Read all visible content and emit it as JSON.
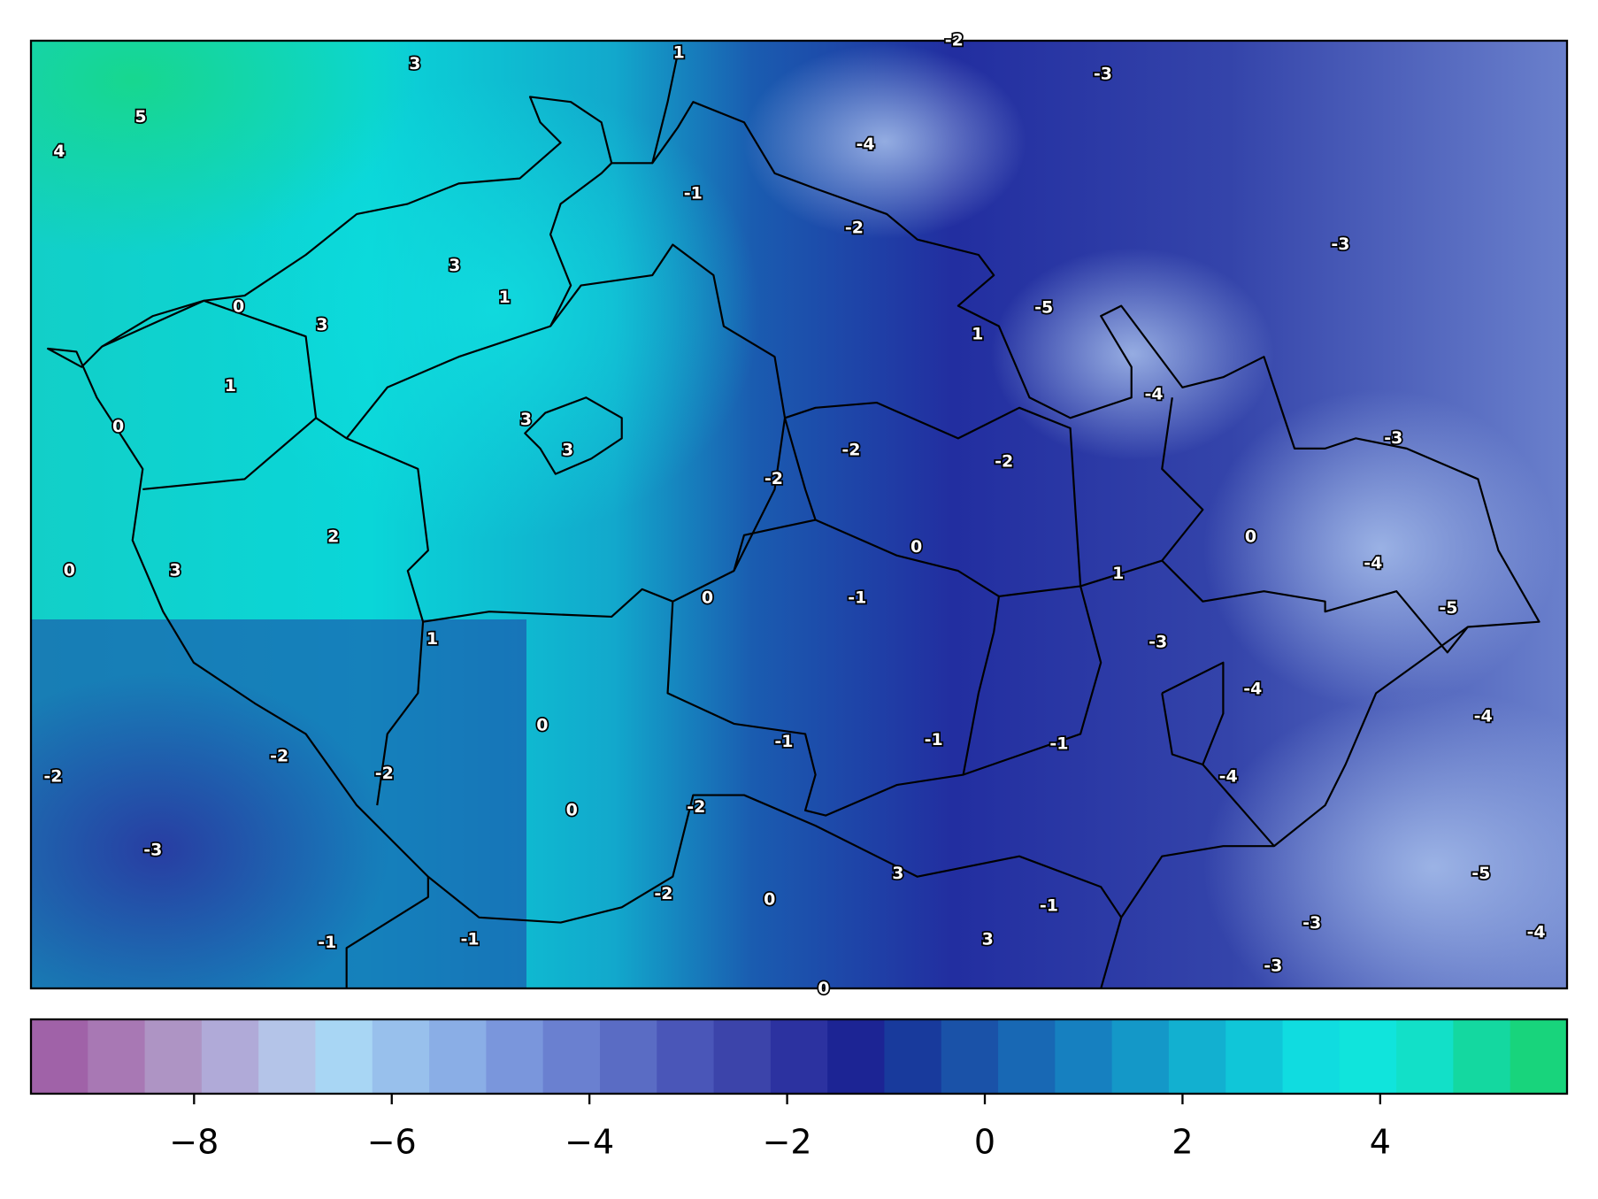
{
  "labels": [
    3,
    1,
    -2,
    -3,
    5,
    4,
    -4,
    -1,
    -2,
    -3,
    3,
    1,
    0,
    3,
    -5,
    1,
    1,
    -4,
    0,
    3,
    3,
    -3,
    -2,
    -2,
    -2,
    0,
    2,
    0,
    -4,
    0,
    3,
    1,
    0,
    -1,
    -5,
    1,
    -3,
    -4,
    -4,
    0,
    -1,
    -1,
    -1,
    -2,
    -2,
    -2,
    -4,
    0,
    -2,
    -3,
    3,
    -5,
    -2,
    0,
    -1,
    -3,
    -4,
    -1,
    -1,
    3,
    -3,
    0
  ],
  "colorbar": {
    "lim": [
      -9.65,
      5.89
    ],
    "ticks": [
      {
        "value": -8,
        "label": "−8"
      },
      {
        "value": -6,
        "label": "−6"
      },
      {
        "value": -4,
        "label": "−4"
      },
      {
        "value": -2,
        "label": "−2"
      },
      0,
      2,
      4
    ],
    "colors": [
      "#a062a8",
      "#a878b4",
      "#ae94c4",
      "#b0aad8",
      "#b4c4e8",
      "#a8d6f4",
      "#98c0ec",
      "#8aaee6",
      "#7a96dc",
      "#6a80d0",
      "#5a6cc4",
      "#4a56b8",
      "#3c44aa",
      "#2c32a0",
      "#1c2494",
      "#183a9c",
      "#1a52a8",
      "#1868b4",
      "#1680c0",
      "#1498c8",
      "#12b0d0",
      "#10c6d8",
      "#10dce0",
      "#10e4dc",
      "#12e0c8",
      "#14d8a0",
      "#18d47c"
    ]
  }
}
